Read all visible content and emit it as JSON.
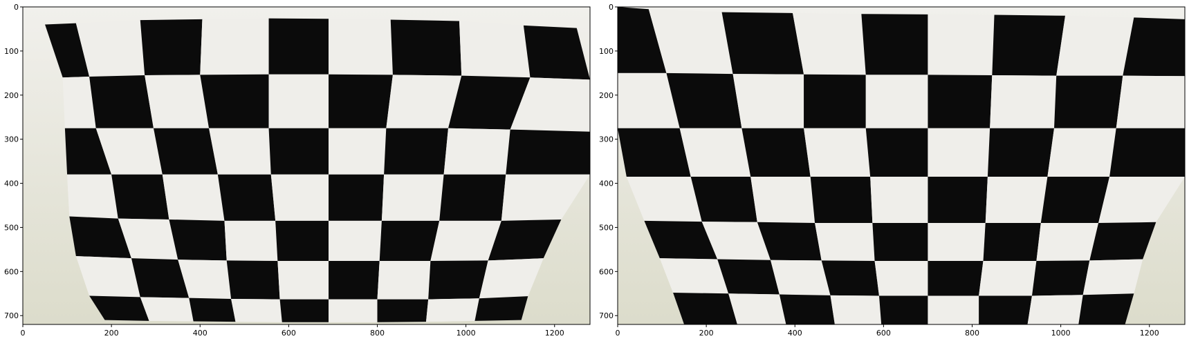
{
  "panels": [
    {
      "id": "original",
      "image_extent": {
        "width": 1280,
        "height": 720
      },
      "x_ticks": [
        0,
        200,
        400,
        600,
        800,
        1000,
        1200
      ],
      "y_ticks": [
        0,
        100,
        200,
        300,
        400,
        500,
        600,
        700
      ],
      "board": {
        "rows": [
          [
            [
              50,
              40
            ],
            [
              120,
              37
            ],
            [
              265,
              30
            ],
            [
              405,
              28
            ],
            [
              555,
              26
            ],
            [
              690,
              27
            ],
            [
              830,
              29
            ],
            [
              985,
              32
            ],
            [
              1130,
              42
            ],
            [
              1250,
              48
            ]
          ],
          [
            [
              90,
              160
            ],
            [
              150,
              158
            ],
            [
              275,
              155
            ],
            [
              400,
              154
            ],
            [
              555,
              153
            ],
            [
              690,
              153
            ],
            [
              835,
              154
            ],
            [
              990,
              156
            ],
            [
              1145,
              160
            ],
            [
              1280,
              165
            ]
          ],
          [
            [
              95,
              275
            ],
            [
              165,
              275
            ],
            [
              295,
              275
            ],
            [
              420,
              275
            ],
            [
              555,
              275
            ],
            [
              690,
              275
            ],
            [
              820,
              275
            ],
            [
              960,
              275
            ],
            [
              1100,
              278
            ],
            [
              1280,
              283
            ]
          ],
          [
            [
              100,
              380
            ],
            [
              200,
              380
            ],
            [
              315,
              380
            ],
            [
              440,
              380
            ],
            [
              560,
              380
            ],
            [
              690,
              380
            ],
            [
              815,
              380
            ],
            [
              950,
              380
            ],
            [
              1090,
              380
            ],
            [
              1280,
              380
            ]
          ],
          [
            [
              105,
              475
            ],
            [
              215,
              480
            ],
            [
              330,
              482
            ],
            [
              455,
              485
            ],
            [
              570,
              485
            ],
            [
              690,
              485
            ],
            [
              810,
              485
            ],
            [
              940,
              485
            ],
            [
              1080,
              485
            ],
            [
              1215,
              482
            ]
          ],
          [
            [
              120,
              565
            ],
            [
              245,
              570
            ],
            [
              350,
              573
            ],
            [
              460,
              575
            ],
            [
              575,
              576
            ],
            [
              690,
              576
            ],
            [
              805,
              576
            ],
            [
              920,
              576
            ],
            [
              1050,
              575
            ],
            [
              1175,
              570
            ]
          ],
          [
            [
              150,
              655
            ],
            [
              265,
              658
            ],
            [
              375,
              660
            ],
            [
              470,
              662
            ],
            [
              580,
              663
            ],
            [
              690,
              663
            ],
            [
              800,
              663
            ],
            [
              915,
              663
            ],
            [
              1030,
              661
            ],
            [
              1140,
              656
            ]
          ],
          [
            [
              185,
              710
            ],
            [
              285,
              712
            ],
            [
              385,
              713
            ],
            [
              480,
              714
            ],
            [
              585,
              715
            ],
            [
              690,
              715
            ],
            [
              800,
              715
            ],
            [
              910,
              714
            ],
            [
              1020,
              712
            ],
            [
              1125,
              710
            ]
          ]
        ],
        "black_start_parity": 0
      }
    },
    {
      "id": "undistorted",
      "image_extent": {
        "width": 1280,
        "height": 720
      },
      "x_ticks": [
        0,
        200,
        400,
        600,
        800,
        1000,
        1200
      ],
      "y_ticks": [
        0,
        100,
        200,
        300,
        400,
        500,
        600,
        700
      ],
      "board": {
        "rows": [
          [
            [
              0,
              0
            ],
            [
              70,
              5
            ],
            [
              235,
              12
            ],
            [
              395,
              14
            ],
            [
              550,
              16
            ],
            [
              700,
              17
            ],
            [
              850,
              18
            ],
            [
              1010,
              20
            ],
            [
              1165,
              24
            ],
            [
              1280,
              28
            ]
          ],
          [
            [
              0,
              150
            ],
            [
              110,
              150
            ],
            [
              260,
              152
            ],
            [
              420,
              153
            ],
            [
              560,
              154
            ],
            [
              700,
              154
            ],
            [
              845,
              155
            ],
            [
              990,
              156
            ],
            [
              1140,
              156
            ],
            [
              1280,
              157
            ]
          ],
          [
            [
              0,
              275
            ],
            [
              140,
              275
            ],
            [
              280,
              275
            ],
            [
              420,
              275
            ],
            [
              560,
              275
            ],
            [
              700,
              275
            ],
            [
              840,
              275
            ],
            [
              985,
              275
            ],
            [
              1125,
              275
            ],
            [
              1280,
              275
            ]
          ],
          [
            [
              20,
              385
            ],
            [
              165,
              385
            ],
            [
              300,
              385
            ],
            [
              435,
              385
            ],
            [
              570,
              385
            ],
            [
              700,
              385
            ],
            [
              835,
              385
            ],
            [
              970,
              385
            ],
            [
              1110,
              385
            ],
            [
              1280,
              385
            ]
          ],
          [
            [
              60,
              485
            ],
            [
              190,
              487
            ],
            [
              315,
              488
            ],
            [
              445,
              490
            ],
            [
              575,
              490
            ],
            [
              700,
              490
            ],
            [
              830,
              490
            ],
            [
              955,
              490
            ],
            [
              1085,
              490
            ],
            [
              1215,
              488
            ]
          ],
          [
            [
              95,
              570
            ],
            [
              225,
              572
            ],
            [
              345,
              574
            ],
            [
              460,
              575
            ],
            [
              580,
              576
            ],
            [
              700,
              576
            ],
            [
              825,
              576
            ],
            [
              945,
              576
            ],
            [
              1065,
              575
            ],
            [
              1185,
              572
            ]
          ],
          [
            [
              125,
              648
            ],
            [
              250,
              650
            ],
            [
              365,
              652
            ],
            [
              480,
              654
            ],
            [
              590,
              655
            ],
            [
              700,
              655
            ],
            [
              815,
              655
            ],
            [
              935,
              655
            ],
            [
              1050,
              653
            ],
            [
              1165,
              650
            ]
          ],
          [
            [
              150,
              720
            ],
            [
              270,
              720
            ],
            [
              380,
              720
            ],
            [
              490,
              720
            ],
            [
              595,
              720
            ],
            [
              700,
              720
            ],
            [
              815,
              720
            ],
            [
              925,
              720
            ],
            [
              1040,
              720
            ],
            [
              1145,
              720
            ]
          ]
        ],
        "black_start_parity": 0
      }
    }
  ],
  "colors": {
    "axis": "#000000",
    "black_square": "#0b0b0b",
    "white_square": "#efeeea",
    "background_paper": "#e8e6df",
    "wall_shadow": "#dcdccb"
  }
}
